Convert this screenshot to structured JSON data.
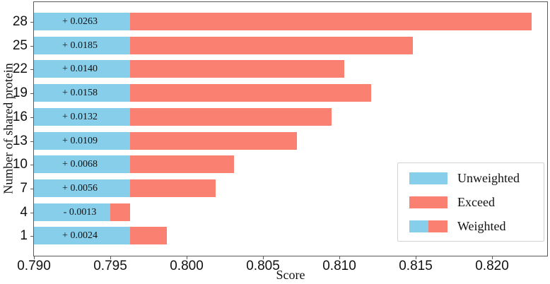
{
  "axis": {
    "xlabel": "Score",
    "ylabel": "Number of shared protein"
  },
  "legend": {
    "items": [
      {
        "label": "Unweighted",
        "swatch": "unweighted"
      },
      {
        "label": "Exceed",
        "swatch": "exceed"
      },
      {
        "label": "Weighted",
        "swatch": "weighted"
      }
    ]
  },
  "chart_data": {
    "type": "bar",
    "orientation": "horizontal",
    "title": "",
    "xlabel": "Score",
    "ylabel": "Number of shared protein",
    "categories": [
      "28",
      "25",
      "22",
      "19",
      "16",
      "13",
      "10",
      "7",
      "4",
      "1"
    ],
    "unweighted_base": 0.7963,
    "deltas": [
      0.0263,
      0.0185,
      0.014,
      0.0158,
      0.0132,
      0.0109,
      0.0068,
      0.0056,
      -0.0013,
      0.0024
    ],
    "delta_labels": [
      "+ 0.0263",
      "+ 0.0185",
      "+ 0.0140",
      "+ 0.0158",
      "+ 0.0132",
      "+ 0.0109",
      "+ 0.0068",
      "+ 0.0056",
      "- 0.0013",
      "+ 0.0024"
    ],
    "series": [
      {
        "name": "Unweighted",
        "values": [
          0.7963,
          0.7963,
          0.7963,
          0.7963,
          0.7963,
          0.7963,
          0.7963,
          0.7963,
          0.795,
          0.7963
        ]
      },
      {
        "name": "Weighted",
        "values": [
          0.8226,
          0.8148,
          0.8103,
          0.8121,
          0.8095,
          0.8072,
          0.8031,
          0.8019,
          0.795,
          0.7987
        ]
      }
    ],
    "xlim": [
      0.79,
      0.8236
    ],
    "xticks": [
      "0.790",
      "0.795",
      "0.800",
      "0.805",
      "0.810",
      "0.815",
      "0.820"
    ],
    "xtick_values": [
      0.79,
      0.795,
      0.8,
      0.805,
      0.81,
      0.815,
      0.82
    ],
    "grid": false,
    "legend_position": "lower right",
    "colors": {
      "unweighted": "#87CEEB",
      "exceed": "#FA8072"
    }
  }
}
